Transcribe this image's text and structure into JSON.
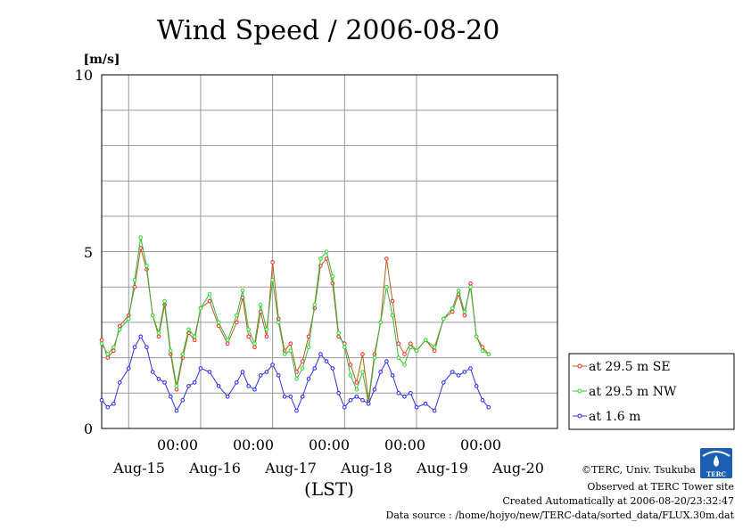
{
  "chart_data": {
    "type": "line",
    "title": "Wind Speed / 2006-08-20",
    "ylabel": "[m/s]",
    "xlabel": "(LST)",
    "ylim": [
      0,
      10
    ],
    "xlim": [
      "2006-08-14T15:00",
      "2006-08-20T23:00"
    ],
    "y_ticks": [
      "0",
      "5",
      "10"
    ],
    "x_time_ticks": [
      "00:00",
      "00:00",
      "00:00",
      "00:00",
      "00:00"
    ],
    "x_date_labels": [
      "Aug-15",
      "Aug-16",
      "Aug-17",
      "Aug-18",
      "Aug-19",
      "Aug-20"
    ],
    "grid": true,
    "legend_position": "right",
    "anchors": [
      [
        "2006-08-14T15:00",
        2.5,
        2.4,
        0.8
      ],
      [
        "2006-08-14T17:00",
        2.0,
        2.1,
        0.6
      ],
      [
        "2006-08-14T19:00",
        2.2,
        2.3,
        0.7
      ],
      [
        "2006-08-14T21:00",
        2.9,
        2.8,
        1.3
      ],
      [
        "2006-08-15T00:00",
        3.2,
        3.1,
        1.7
      ],
      [
        "2006-08-15T02:00",
        4.0,
        4.2,
        2.3
      ],
      [
        "2006-08-15T04:00",
        5.1,
        5.4,
        2.6
      ],
      [
        "2006-08-15T06:00",
        4.5,
        4.6,
        2.3
      ],
      [
        "2006-08-15T08:00",
        3.2,
        3.2,
        1.6
      ],
      [
        "2006-08-15T10:00",
        2.6,
        2.7,
        1.4
      ],
      [
        "2006-08-15T12:00",
        3.5,
        3.6,
        1.3
      ],
      [
        "2006-08-15T14:00",
        2.1,
        2.2,
        0.9
      ],
      [
        "2006-08-15T16:00",
        1.1,
        1.2,
        0.5
      ],
      [
        "2006-08-15T18:00",
        2.0,
        2.1,
        0.8
      ],
      [
        "2006-08-15T20:00",
        2.7,
        2.8,
        1.2
      ],
      [
        "2006-08-15T22:00",
        2.5,
        2.6,
        1.3
      ],
      [
        "2006-08-16T00:00",
        3.4,
        3.4,
        1.7
      ],
      [
        "2006-08-16T03:00",
        3.6,
        3.8,
        1.6
      ],
      [
        "2006-08-16T06:00",
        2.9,
        3.0,
        1.2
      ],
      [
        "2006-08-16T09:00",
        2.4,
        2.5,
        0.9
      ],
      [
        "2006-08-16T12:00",
        3.0,
        3.2,
        1.3
      ],
      [
        "2006-08-16T14:00",
        3.7,
        3.9,
        1.6
      ],
      [
        "2006-08-16T16:00",
        2.6,
        2.8,
        1.2
      ],
      [
        "2006-08-16T18:00",
        2.3,
        2.4,
        1.1
      ],
      [
        "2006-08-16T20:00",
        3.3,
        3.5,
        1.5
      ],
      [
        "2006-08-16T22:00",
        2.6,
        2.8,
        1.6
      ],
      [
        "2006-08-17T00:00",
        4.7,
        4.2,
        1.8
      ],
      [
        "2006-08-17T02:00",
        3.1,
        3.0,
        1.5
      ],
      [
        "2006-08-17T04:00",
        2.2,
        2.1,
        0.9
      ],
      [
        "2006-08-17T06:00",
        2.4,
        2.2,
        0.9
      ],
      [
        "2006-08-17T08:00",
        1.6,
        1.4,
        0.5
      ],
      [
        "2006-08-17T10:00",
        1.9,
        1.7,
        0.9
      ],
      [
        "2006-08-17T12:00",
        2.6,
        2.3,
        1.4
      ],
      [
        "2006-08-17T14:00",
        3.4,
        3.5,
        1.7
      ],
      [
        "2006-08-17T16:00",
        4.6,
        4.8,
        2.1
      ],
      [
        "2006-08-17T18:00",
        4.8,
        5.0,
        1.9
      ],
      [
        "2006-08-17T20:00",
        4.1,
        4.3,
        1.7
      ],
      [
        "2006-08-17T22:00",
        2.6,
        2.7,
        1.0
      ],
      [
        "2006-08-18T00:00",
        2.4,
        2.3,
        0.6
      ],
      [
        "2006-08-18T02:00",
        1.8,
        1.5,
        0.8
      ],
      [
        "2006-08-18T04:00",
        1.3,
        1.1,
        0.9
      ],
      [
        "2006-08-18T06:00",
        2.1,
        1.6,
        0.8
      ],
      [
        "2006-08-18T08:00",
        0.8,
        0.7,
        0.7
      ],
      [
        "2006-08-18T10:00",
        2.1,
        2.0,
        1.1
      ],
      [
        "2006-08-18T12:00",
        3.0,
        3.0,
        1.6
      ],
      [
        "2006-08-18T14:00",
        4.8,
        4.0,
        1.9
      ],
      [
        "2006-08-18T16:00",
        3.6,
        3.2,
        1.5
      ],
      [
        "2006-08-18T18:00",
        2.4,
        2.0,
        1.0
      ],
      [
        "2006-08-18T20:00",
        2.1,
        1.8,
        0.9
      ],
      [
        "2006-08-18T22:00",
        2.4,
        2.3,
        1.0
      ],
      [
        "2006-08-19T00:00",
        2.2,
        2.2,
        0.6
      ],
      [
        "2006-08-19T03:00",
        2.5,
        2.5,
        0.7
      ],
      [
        "2006-08-19T06:00",
        2.2,
        2.3,
        0.5
      ],
      [
        "2006-08-19T09:00",
        3.1,
        3.1,
        1.3
      ],
      [
        "2006-08-19T12:00",
        3.3,
        3.4,
        1.6
      ],
      [
        "2006-08-19T14:00",
        3.8,
        3.9,
        1.5
      ],
      [
        "2006-08-19T16:00",
        3.2,
        3.3,
        1.6
      ],
      [
        "2006-08-19T18:00",
        4.1,
        4.0,
        1.7
      ],
      [
        "2006-08-19T20:00",
        2.6,
        2.6,
        1.2
      ],
      [
        "2006-08-19T22:00",
        2.3,
        2.2,
        0.8
      ],
      [
        "2006-08-20T00:00",
        2.1,
        2.1,
        0.6
      ]
    ],
    "series": [
      {
        "name": "at 29.5 m SE",
        "color": "#ff2020",
        "line_color": "#b06018"
      },
      {
        "name": "at 29.5 m NW",
        "color": "#20e020",
        "line_color": "#40b040"
      },
      {
        "name": "at 1.6 m",
        "color": "#2020ff",
        "line_color": "#3030e0"
      }
    ]
  },
  "footer": {
    "copyright": "©TERC, Univ. Tsukuba",
    "observed": "Observed at TERC Tower site",
    "created": "Created Automatically at 2006-08-20/23:32:47",
    "source": "Data source : /home/hojyo/new/TERC-data/sorted_data/FLUX.30m.dat",
    "logo_text": "TERC"
  }
}
